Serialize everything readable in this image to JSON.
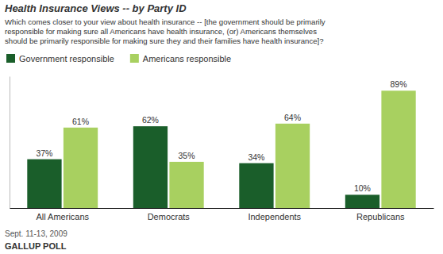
{
  "chart_data": {
    "type": "bar",
    "title": "Health Insurance Views -- by Party ID",
    "subtitle": "Which comes closer to your view about health insurance -- [the government should be primarily\nresponsible for making sure all Americans have health insurance, (or) Americans themselves\nshould be primarily responsible for making sure they and their families have health insurance]?",
    "categories": [
      "All Americans",
      "Democrats",
      "Independents",
      "Republicans"
    ],
    "series": [
      {
        "name": "Government responsible",
        "color": "#1a5e2a",
        "values": [
          37,
          62,
          34,
          10
        ],
        "value_labels": [
          "37%",
          "62%",
          "34%",
          "10%"
        ]
      },
      {
        "name": "Americans responsible",
        "color": "#a8d060",
        "values": [
          61,
          35,
          64,
          89
        ],
        "value_labels": [
          "61%",
          "35%",
          "64%",
          "89%"
        ]
      }
    ],
    "ylim": [
      0,
      100
    ],
    "tick_labels": "x",
    "data_labels": true,
    "legend": "top",
    "footnote": "Sept. 11-13, 2009",
    "source": "GALLUP POLL"
  }
}
